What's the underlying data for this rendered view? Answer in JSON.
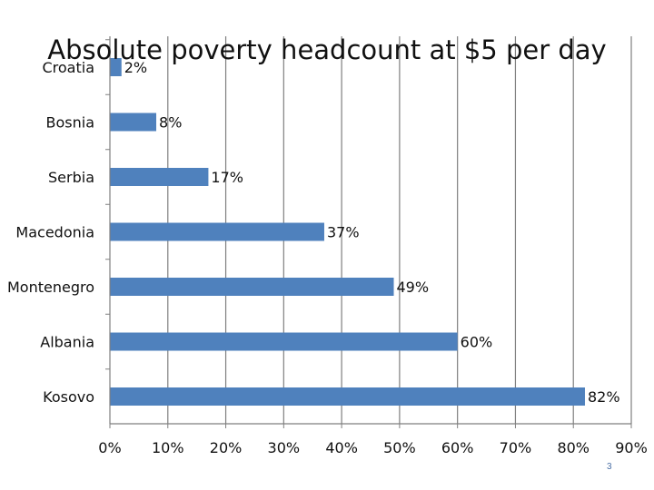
{
  "page_number": "3",
  "chart_data": {
    "type": "bar",
    "orientation": "horizontal",
    "title": "Absolute poverty headcount at $5 per day",
    "xlabel": "",
    "ylabel": "",
    "categories": [
      "Croatia",
      "Bosnia",
      "Serbia",
      "Macedonia",
      "Montenegro",
      "Albania",
      "Kosovo"
    ],
    "values": [
      2,
      8,
      17,
      37,
      49,
      60,
      82
    ],
    "data_labels": [
      "2%",
      "8%",
      "17%",
      "37%",
      "49%",
      "60%",
      "82%"
    ],
    "xlim": [
      0,
      90
    ],
    "xticks": [
      0,
      10,
      20,
      30,
      40,
      50,
      60,
      70,
      80,
      90
    ],
    "xtick_labels": [
      "0%",
      "10%",
      "20%",
      "30%",
      "40%",
      "50%",
      "60%",
      "70%",
      "80%",
      "90%"
    ],
    "grid": true,
    "legend": "none",
    "colors": {
      "bar": "#4f81bd",
      "grid": "#7f7f7f",
      "axis": "#7f7f7f",
      "text": "#111111",
      "page_number": "#4a6fa5"
    }
  }
}
